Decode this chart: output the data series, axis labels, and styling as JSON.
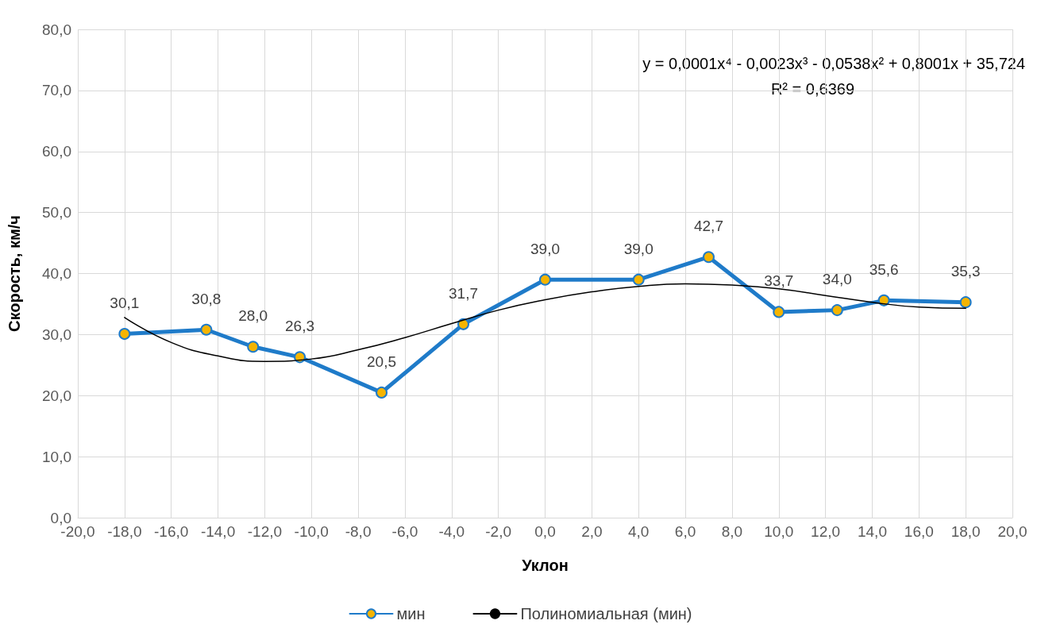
{
  "chart_data": {
    "type": "line",
    "xlabel": "Уклон",
    "ylabel": "Скорость, км/ч",
    "xlim": [
      -20,
      20
    ],
    "xticks": [
      {
        "value": -20,
        "label": "-20,0"
      },
      {
        "value": -18,
        "label": "-18,0"
      },
      {
        "value": -16,
        "label": "-16,0"
      },
      {
        "value": -14,
        "label": "-14,0"
      },
      {
        "value": -12,
        "label": "-12,0"
      },
      {
        "value": -10,
        "label": "-10,0"
      },
      {
        "value": -8,
        "label": "-8,0"
      },
      {
        "value": -6,
        "label": "-6,0"
      },
      {
        "value": -4,
        "label": "-4,0"
      },
      {
        "value": -2,
        "label": "-2,0"
      },
      {
        "value": 0,
        "label": "0,0"
      },
      {
        "value": 2,
        "label": "2,0"
      },
      {
        "value": 4,
        "label": "4,0"
      },
      {
        "value": 6,
        "label": "6,0"
      },
      {
        "value": 8,
        "label": "8,0"
      },
      {
        "value": 10,
        "label": "10,0"
      },
      {
        "value": 12,
        "label": "12,0"
      },
      {
        "value": 14,
        "label": "14,0"
      },
      {
        "value": 16,
        "label": "16,0"
      },
      {
        "value": 18,
        "label": "18,0"
      },
      {
        "value": 20,
        "label": "20,0"
      }
    ],
    "ylim": [
      0,
      80
    ],
    "yticks": [
      {
        "value": 0,
        "label": "0,0"
      },
      {
        "value": 10,
        "label": "10,0"
      },
      {
        "value": 20,
        "label": "20,0"
      },
      {
        "value": 30,
        "label": "30,0"
      },
      {
        "value": 40,
        "label": "40,0"
      },
      {
        "value": 50,
        "label": "50,0"
      },
      {
        "value": 60,
        "label": "60,0"
      },
      {
        "value": 70,
        "label": "70,0"
      },
      {
        "value": 80,
        "label": "80,0"
      }
    ],
    "grid": true,
    "legend": "bottom",
    "marker": "circle",
    "line_style": "solid",
    "annotations": [
      "y = 0,0001x⁴ - 0,0023x³ - 0,0538x² + 0,8001x + 35,724",
      "R² = 0,6369"
    ],
    "series": [
      {
        "name": "мин",
        "color": "#1f7bc9",
        "x": [
          -18,
          -14.5,
          -12.5,
          -10.5,
          -7,
          -3.5,
          0,
          4,
          7,
          10,
          12.5,
          14.5,
          18
        ],
        "values": [
          30.1,
          30.8,
          28.0,
          26.3,
          20.5,
          31.7,
          39.0,
          39.0,
          42.7,
          33.7,
          34.0,
          35.6,
          35.3
        ],
        "value_labels": [
          "30,1",
          "30,8",
          "28,0",
          "26,3",
          "20,5",
          "31,7",
          "39,0",
          "39,0",
          "42,7",
          "33,7",
          "34,0",
          "35,6",
          "35,3"
        ]
      },
      {
        "name": "Полиномиальная (мин)",
        "color": "#000000",
        "marker": "none",
        "x": [
          -18,
          -16,
          -14,
          -12,
          -10,
          -8,
          -6,
          -4,
          -2,
          0,
          2,
          4,
          6,
          8,
          10,
          12,
          14,
          16,
          18
        ],
        "values": [
          32.8,
          28.7,
          26.5,
          25.6,
          26,
          27.5,
          29.5,
          31.8,
          34,
          35.7,
          37,
          37.9,
          38.3,
          38.1,
          37.5,
          36.4,
          35.3,
          34.5,
          34.3
        ]
      }
    ]
  }
}
